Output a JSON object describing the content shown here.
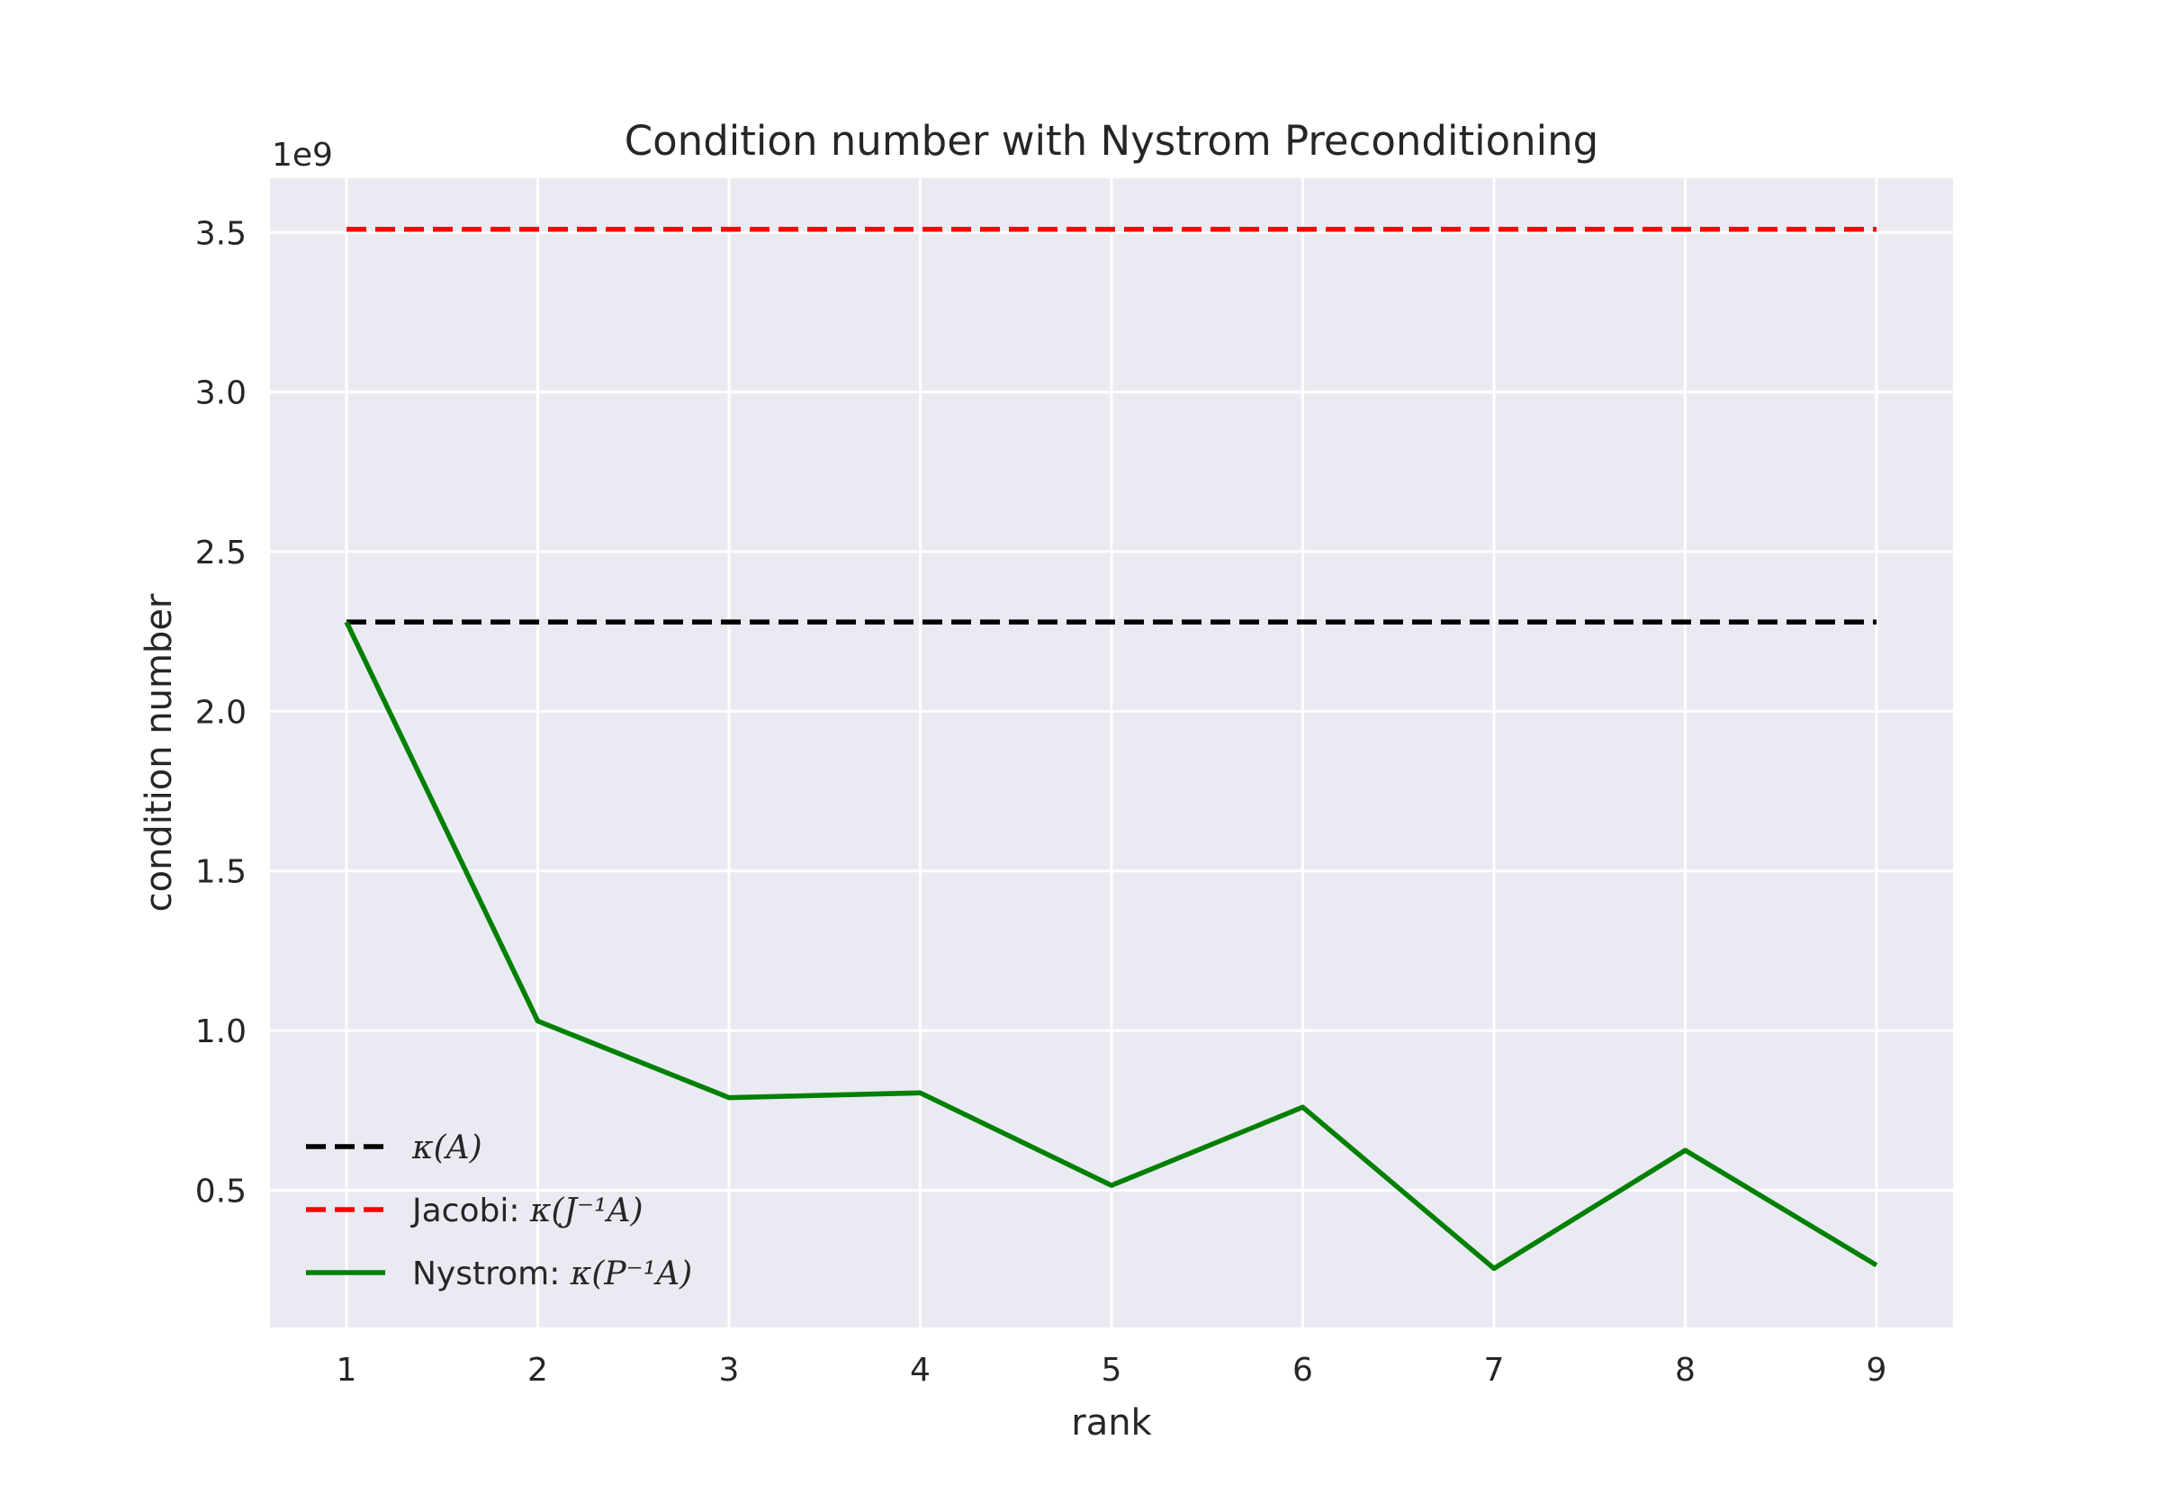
{
  "chart_data": {
    "type": "line",
    "title": "Condition number with Nystrom Preconditioning",
    "xlabel": "rank",
    "ylabel": "condition number",
    "y_offset_label": "1e9",
    "x": [
      1,
      2,
      3,
      4,
      5,
      6,
      7,
      8,
      9
    ],
    "xlim": [
      0.6,
      9.4
    ],
    "ylim": [
      0.07,
      3.67
    ],
    "y_scale_factor": 1000000000,
    "xticks": [
      "1",
      "2",
      "3",
      "4",
      "5",
      "6",
      "7",
      "8",
      "9"
    ],
    "yticks": [
      "0.5",
      "1.0",
      "1.5",
      "2.0",
      "2.5",
      "3.0",
      "3.5"
    ],
    "ytick_values": [
      0.5,
      1.0,
      1.5,
      2.0,
      2.5,
      3.0,
      3.5
    ],
    "grid": true,
    "legend_position": "lower-left",
    "series": [
      {
        "name": "κ(A)",
        "legend_parts": [
          "κ(A)"
        ],
        "color": "#000000",
        "style": "dashed",
        "values": [
          2.28,
          2.28,
          2.28,
          2.28,
          2.28,
          2.28,
          2.28,
          2.28,
          2.28
        ]
      },
      {
        "name": "Jacobi: κ(J⁻¹A)",
        "legend_parts": [
          "Jacobi: ",
          "κ(J⁻¹A)"
        ],
        "color": "#ff0000",
        "style": "dashed",
        "values": [
          3.51,
          3.51,
          3.51,
          3.51,
          3.51,
          3.51,
          3.51,
          3.51,
          3.51
        ]
      },
      {
        "name": "Nystrom: κ(P⁻¹A)",
        "legend_parts": [
          "Nystrom: ",
          "κ(P⁻¹A)"
        ],
        "color": "#008000",
        "style": "solid",
        "values": [
          2.28,
          1.03,
          0.79,
          0.805,
          0.515,
          0.76,
          0.255,
          0.625,
          0.265
        ]
      }
    ]
  }
}
